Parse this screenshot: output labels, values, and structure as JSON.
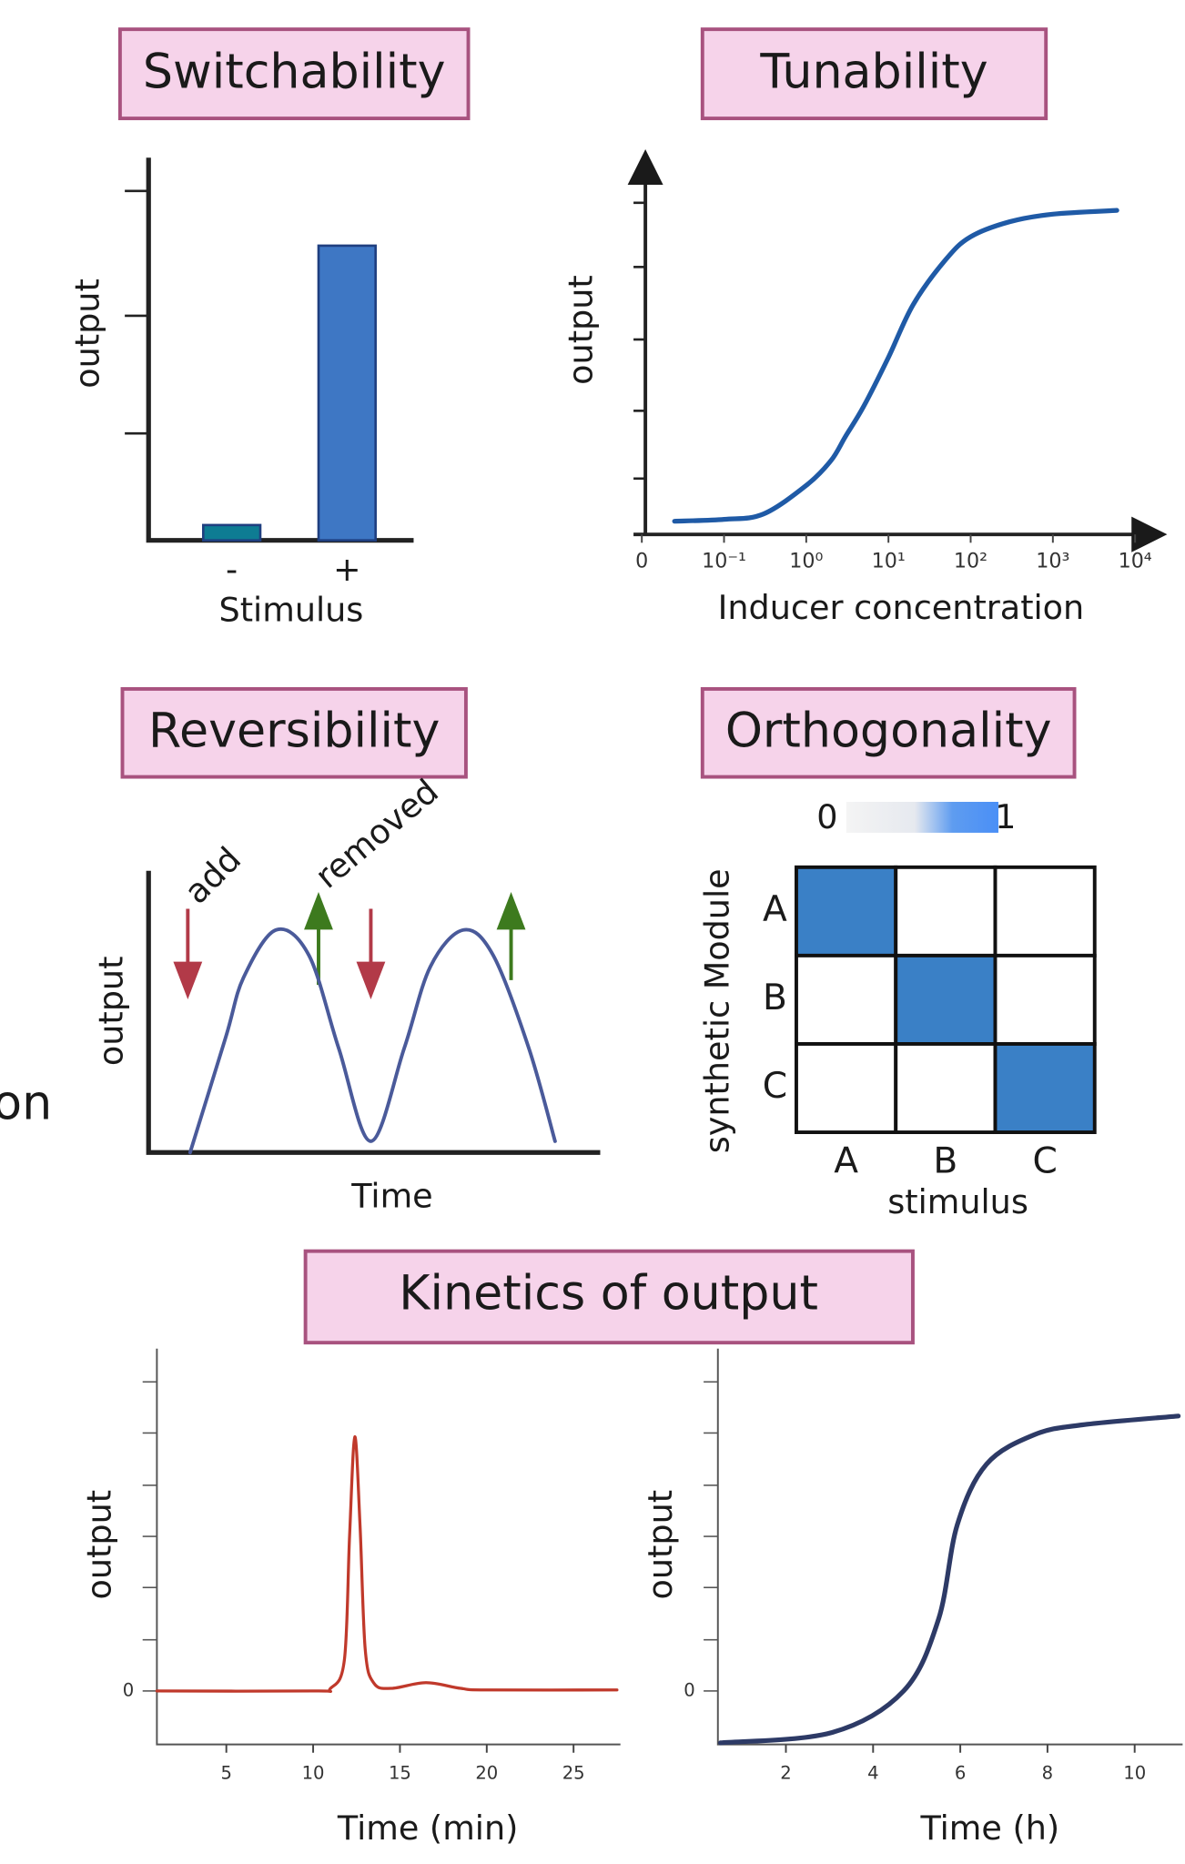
{
  "cropped_text": "on",
  "section_title": "Kinetics of output",
  "chart_data": [
    {
      "type": "bar",
      "title": "Switchability",
      "xlabel": "Stimulus",
      "ylabel": "output",
      "categories": [
        "-",
        "+"
      ],
      "values": [
        4,
        77
      ],
      "colors": [
        "#0e7c93",
        "#3e77c4"
      ],
      "ylim": [
        0,
        100
      ]
    },
    {
      "type": "line",
      "title": "Tunability",
      "xlabel": "Inducer concentration",
      "ylabel": "output",
      "xscale": "log",
      "smooth": true,
      "color": "#1f5aa6",
      "x": [
        0.025,
        0.1,
        0.3,
        1,
        2,
        3,
        5,
        10,
        20,
        50,
        100,
        300,
        1000,
        6000
      ],
      "values": [
        3.5,
        4,
        5.4,
        13,
        19.6,
        26,
        34,
        47,
        61,
        73,
        79,
        83,
        85,
        86
      ],
      "xlim": [
        0,
        10000
      ],
      "xticks": [
        0,
        {
          "value": 0.1,
          "label": "10⁻¹"
        },
        {
          "value": 1,
          "label": "10⁰"
        },
        {
          "value": 10,
          "label": "10¹"
        },
        {
          "value": 100,
          "label": "10²"
        },
        {
          "value": 1000,
          "label": "10³"
        },
        {
          "value": 10000,
          "label": "10⁴"
        }
      ],
      "ylim": [
        0,
        100
      ]
    },
    {
      "type": "line",
      "title": "Reversibility",
      "xlabel": "Time",
      "ylabel": "output",
      "annotations": [
        "add",
        "removed"
      ],
      "smooth": true,
      "color": "#4a5a9a",
      "x": [
        0.92,
        1.71,
        2.1,
        2.82,
        3.55,
        4.21,
        4.92,
        5.66,
        6.24,
        6.97,
        7.63,
        8.42,
        9.0
      ],
      "values": [
        0,
        41,
        62,
        79,
        70,
        37,
        4,
        37,
        66,
        79,
        70,
        37,
        4
      ],
      "xlim": [
        0,
        10
      ],
      "ylim": [
        0,
        100
      ]
    },
    {
      "type": "heatmap",
      "title": "Orthogonality",
      "xlabel": "stimulus",
      "ylabel": "synthetic Module",
      "x_categories": [
        "A",
        "B",
        "C"
      ],
      "y_categories": [
        "A",
        "B",
        "C"
      ],
      "values": [
        [
          1,
          0,
          0
        ],
        [
          0,
          1,
          0
        ],
        [
          0,
          0,
          1
        ]
      ],
      "zlim": [
        0,
        1
      ],
      "zticks": [
        0,
        1
      ],
      "colormap": [
        "#ffffff",
        "#3a80c6"
      ]
    },
    {
      "type": "line",
      "xlabel": "Time (min)",
      "ylabel": "output",
      "smooth": true,
      "color": "#c0392b",
      "x": [
        1,
        10,
        11,
        11.8,
        12.1,
        12.4,
        12.7,
        13.0,
        13.5,
        14.5,
        16.5,
        18.5,
        20,
        27.5
      ],
      "values": [
        0,
        0,
        0.05,
        0.6,
        3,
        4.9,
        3.2,
        0.8,
        0.15,
        0.05,
        0.16,
        0.05,
        0.02,
        0.02
      ],
      "xlim": [
        1,
        27.7
      ],
      "xticks": [
        5,
        10,
        15,
        20,
        25
      ],
      "ylim": [
        -1.03,
        6.6
      ],
      "yticks": [
        0
      ]
    },
    {
      "type": "line",
      "xlabel": "Time (h)",
      "ylabel": "output",
      "smooth": true,
      "color": "#2d3a66",
      "x": [
        0.5,
        3.06,
        4.7,
        5.5,
        5.93,
        6.6,
        7.7,
        8.8,
        11
      ],
      "values": [
        -1,
        -0.8,
        0,
        1.38,
        3.2,
        4.37,
        4.94,
        5.13,
        5.3
      ],
      "xlim": [
        0.44,
        11.1
      ],
      "xticks": [
        2,
        4,
        6,
        8,
        10
      ],
      "ylim": [
        -1.03,
        6.6
      ],
      "yticks": [
        0
      ]
    }
  ]
}
